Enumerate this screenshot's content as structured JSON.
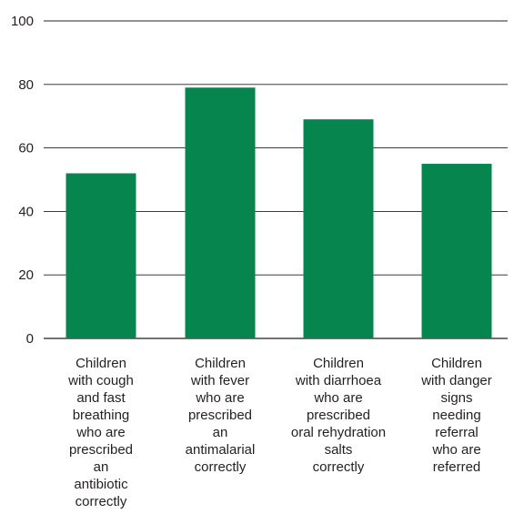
{
  "chart_data": {
    "type": "bar",
    "title": "",
    "xlabel": "",
    "ylabel": "",
    "ylim": [
      0,
      100
    ],
    "yticks": [
      0,
      20,
      40,
      60,
      80,
      100
    ],
    "grid": true,
    "bar_color": "#07854f",
    "grid_color": "#231f20",
    "categories": [
      [
        "Children",
        "with cough",
        "and fast",
        "breathing",
        "who are",
        "prescribed",
        "an",
        "antibiotic",
        "correctly"
      ],
      [
        "Children",
        "with fever",
        "who are",
        "prescribed",
        "an",
        "antimalarial",
        "correctly"
      ],
      [
        "Children",
        "with diarrhoea",
        "who are",
        "prescribed",
        "oral rehydration",
        "salts",
        "correctly"
      ],
      [
        "Children",
        "with danger",
        "signs",
        "needing",
        "referral",
        "who are",
        "referred"
      ]
    ],
    "values": [
      52,
      79,
      69,
      55
    ]
  }
}
